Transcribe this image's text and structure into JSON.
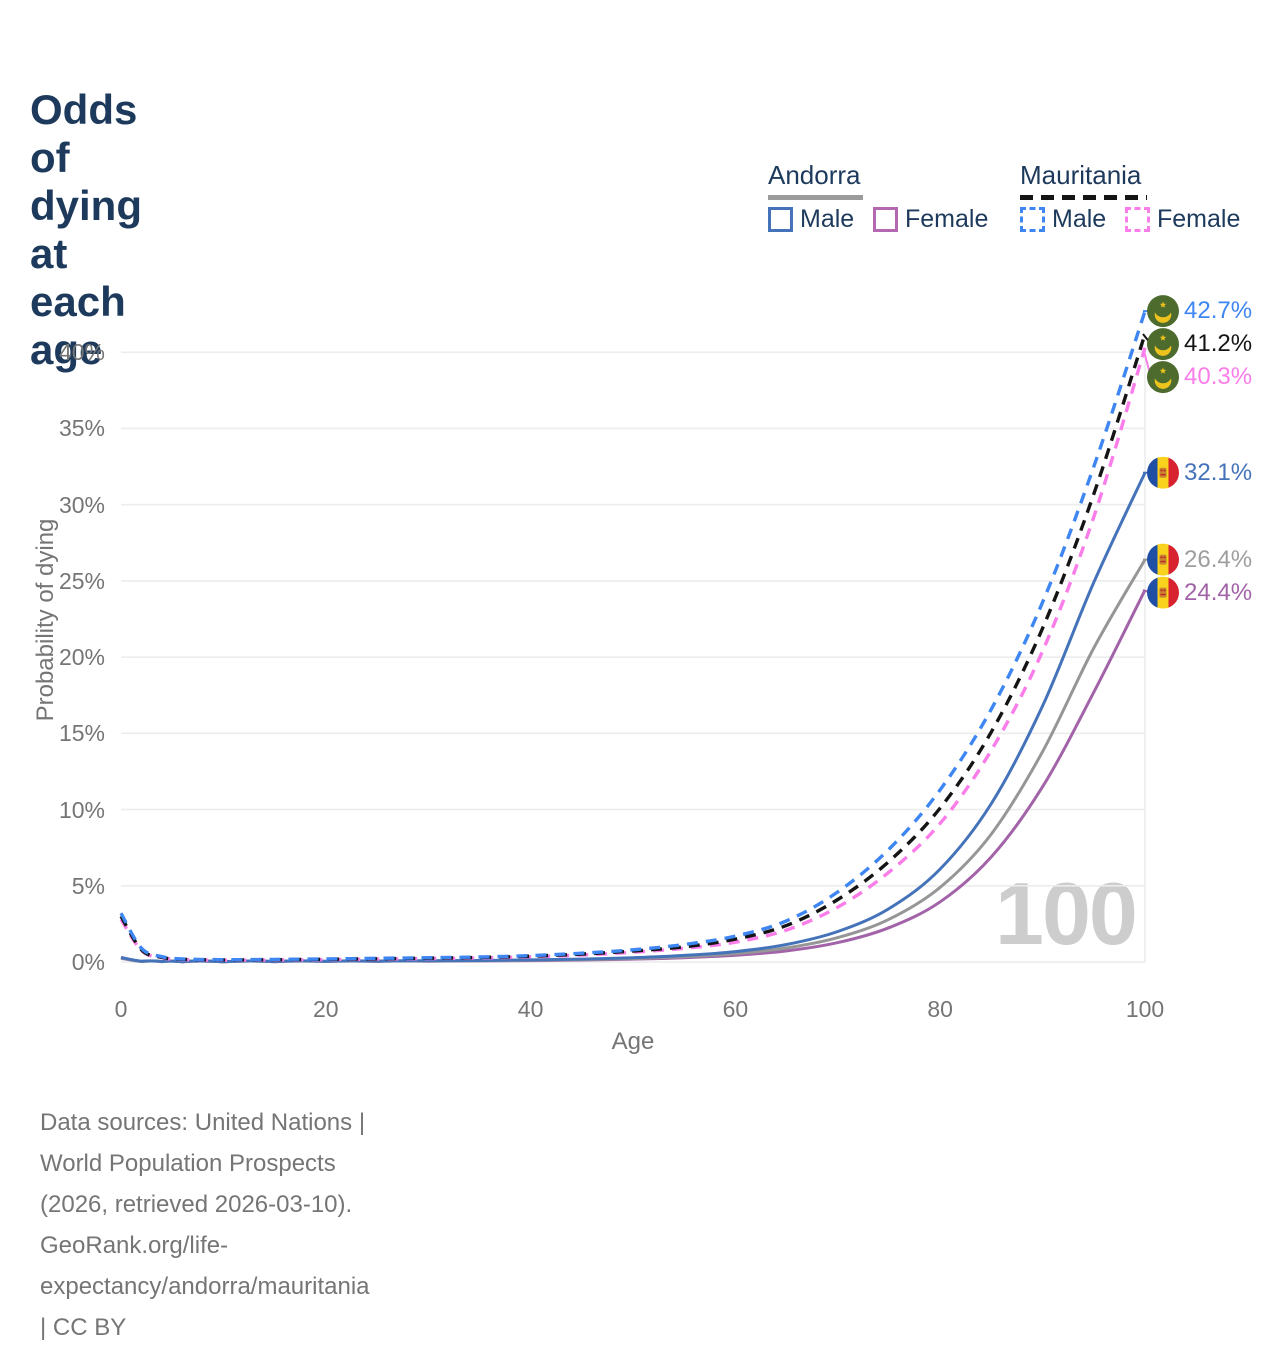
{
  "title": "Odds of dying at each age",
  "legend": {
    "groups": [
      {
        "country": "Andorra",
        "line_style": "solid",
        "header_swatch_color": "#9b9b9b",
        "items": [
          {
            "label": "Male",
            "color": "#4573b9"
          },
          {
            "label": "Female",
            "color": "#b568b2"
          }
        ]
      },
      {
        "country": "Mauritania",
        "line_style": "dashed",
        "header_swatch_color": "#141414",
        "items": [
          {
            "label": "Male",
            "color": "#3e86f2"
          },
          {
            "label": "Female",
            "color": "#fa7de9"
          }
        ]
      }
    ]
  },
  "watermark": "100",
  "footer": {
    "line1": "Data sources: United Nations | World Population Prospects (2026, retrieved 2026-03-10).",
    "line2": "GeoRank.org/life-expectancy/andorra/mauritania | CC BY"
  },
  "theme": {
    "title_color": "#1d3a5c",
    "axis_text_color": "#757575",
    "gridline_color": "#ececec",
    "watermark_color": "#cdcdcd"
  },
  "chart_data": {
    "type": "line",
    "title": "Odds of dying at each age",
    "xlabel": "Age",
    "ylabel": "Probability of dying",
    "xlim": [
      0,
      100
    ],
    "ylim": [
      0,
      44
    ],
    "grid": "horizontal",
    "legend_position": "top-right",
    "x_ticks": [
      0,
      20,
      40,
      60,
      80,
      100
    ],
    "y_ticks": [
      {
        "value": 0,
        "label": "0%"
      },
      {
        "value": 5,
        "label": "5%"
      },
      {
        "value": 10,
        "label": "10%"
      },
      {
        "value": 15,
        "label": "15%"
      },
      {
        "value": 20,
        "label": "20%"
      },
      {
        "value": 25,
        "label": "25%"
      },
      {
        "value": 30,
        "label": "30%"
      },
      {
        "value": 35,
        "label": "35%"
      },
      {
        "value": 40,
        "label": "40%"
      }
    ],
    "ages": [
      0,
      2,
      4,
      6,
      10,
      15,
      20,
      25,
      30,
      35,
      40,
      45,
      50,
      55,
      60,
      65,
      70,
      75,
      80,
      85,
      90,
      95,
      100
    ],
    "series": [
      {
        "id": "mauritania-male",
        "name": "Mauritania Male",
        "country": "Mauritania",
        "sex": "male",
        "color": "#3e86f2",
        "label_color": "#3e86f2",
        "dash": true,
        "flag": "mauritania",
        "end_label": "42.7%",
        "end_value": 42.7,
        "values": [
          3.2,
          0.9,
          0.35,
          0.2,
          0.15,
          0.17,
          0.2,
          0.24,
          0.28,
          0.33,
          0.42,
          0.58,
          0.8,
          1.15,
          1.7,
          2.7,
          4.6,
          7.4,
          11.3,
          16.6,
          23.6,
          32.5,
          42.7
        ]
      },
      {
        "id": "mauritania-total",
        "name": "Mauritania Both sexes",
        "country": "Mauritania",
        "sex": "both",
        "color": "#141414",
        "label_color": "#141414",
        "dash": true,
        "flag": "mauritania",
        "end_label": "41.2%",
        "end_value": 41.2,
        "values": [
          3.0,
          0.8,
          0.3,
          0.18,
          0.13,
          0.15,
          0.18,
          0.21,
          0.25,
          0.3,
          0.38,
          0.52,
          0.72,
          1.0,
          1.5,
          2.4,
          4.1,
          6.6,
          10.1,
          15.1,
          21.9,
          30.7,
          41.2
        ]
      },
      {
        "id": "mauritania-female",
        "name": "Mauritania Female",
        "country": "Mauritania",
        "sex": "female",
        "color": "#fa7de9",
        "label_color": "#fa7de9",
        "dash": true,
        "flag": "mauritania",
        "end_label": "40.3%",
        "end_value": 40.3,
        "values": [
          2.8,
          0.75,
          0.28,
          0.16,
          0.12,
          0.13,
          0.16,
          0.19,
          0.22,
          0.27,
          0.34,
          0.46,
          0.64,
          0.9,
          1.3,
          2.1,
          3.6,
          5.9,
          9.1,
          13.9,
          20.4,
          29.2,
          40.3
        ]
      },
      {
        "id": "andorra-male",
        "name": "Andorra Male",
        "country": "Andorra",
        "sex": "male",
        "color": "#4573b9",
        "label_color": "#4573b9",
        "dash": false,
        "flag": "andorra",
        "end_label": "32.1%",
        "end_value": 32.1,
        "values": [
          0.3,
          0.05,
          0.03,
          0.02,
          0.02,
          0.03,
          0.05,
          0.06,
          0.08,
          0.1,
          0.14,
          0.19,
          0.28,
          0.43,
          0.68,
          1.15,
          2.0,
          3.5,
          6.1,
          10.4,
          16.8,
          24.9,
          32.1
        ]
      },
      {
        "id": "andorra-total",
        "name": "Andorra Both sexes",
        "country": "Andorra",
        "sex": "both",
        "color": "#969696",
        "label_color": "#9e9e9e",
        "dash": false,
        "flag": "andorra",
        "end_label": "26.4%",
        "end_value": 26.4,
        "values": [
          0.27,
          0.04,
          0.025,
          0.018,
          0.016,
          0.025,
          0.04,
          0.05,
          0.065,
          0.085,
          0.115,
          0.16,
          0.23,
          0.35,
          0.55,
          0.92,
          1.6,
          2.8,
          4.9,
          8.4,
          13.8,
          20.6,
          26.4
        ]
      },
      {
        "id": "andorra-female",
        "name": "Andorra Female",
        "country": "Andorra",
        "sex": "female",
        "color": "#a263a8",
        "label_color": "#a263a8",
        "dash": false,
        "flag": "andorra",
        "end_label": "24.4%",
        "end_value": 24.4,
        "values": [
          0.24,
          0.035,
          0.02,
          0.015,
          0.013,
          0.02,
          0.03,
          0.04,
          0.055,
          0.07,
          0.095,
          0.13,
          0.19,
          0.28,
          0.44,
          0.73,
          1.27,
          2.25,
          3.95,
          6.9,
          11.5,
          17.7,
          24.4
        ]
      }
    ]
  }
}
